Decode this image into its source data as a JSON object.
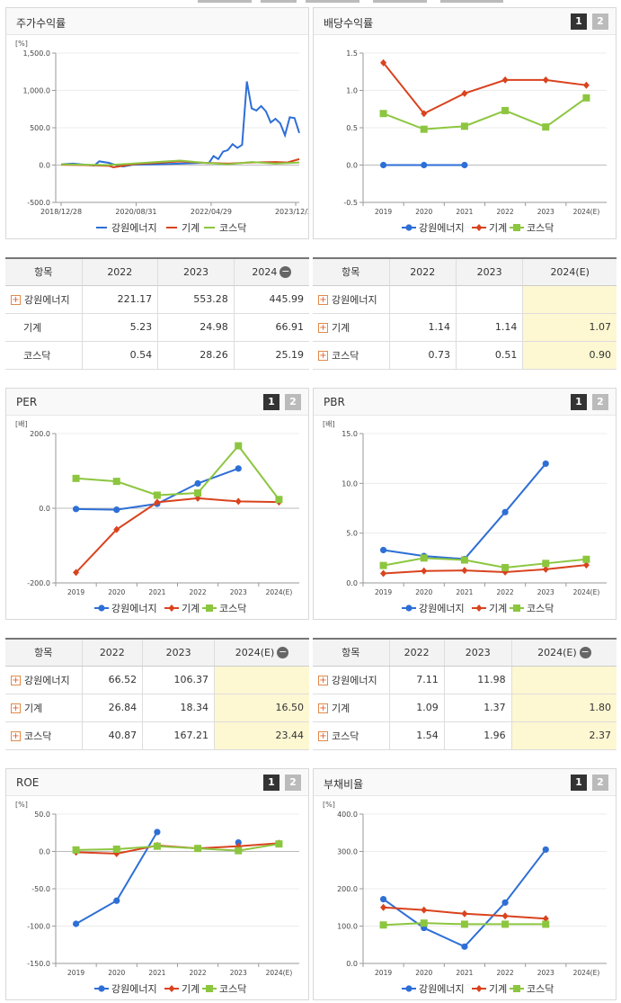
{
  "panels": [
    {
      "key": "stock",
      "title": "주가수익률",
      "buttons": false,
      "unit": "[%]",
      "chart_data": {
        "type": "line",
        "ylim": [
          -500,
          1500
        ],
        "yticks": [
          "1,500.0",
          "1,000.0",
          "500.0",
          "0.0",
          "-500.0"
        ],
        "ytick_vals": [
          1500,
          1000,
          500,
          0,
          -500
        ],
        "xticks": [
          "2018/12/28",
          "2020/08/31",
          "2022/04/29",
          "2023/12/28"
        ],
        "series": [
          {
            "name": "강원에너지",
            "color": "#2e6fd6",
            "marker": "none",
            "x": [
              0,
              0.05,
              0.1,
              0.14,
              0.16,
              0.2,
              0.22,
              0.26,
              0.3,
              0.4,
              0.5,
              0.6,
              0.62,
              0.64,
              0.66,
              0.68,
              0.7,
              0.72,
              0.74,
              0.76,
              0.78,
              0.8,
              0.82,
              0.84,
              0.86,
              0.88,
              0.9,
              0.92,
              0.94,
              0.96,
              0.98,
              1.0
            ],
            "y": [
              10,
              20,
              5,
              -5,
              50,
              30,
              10,
              -20,
              5,
              10,
              20,
              30,
              25,
              120,
              80,
              180,
              200,
              280,
              230,
              270,
              1120,
              760,
              730,
              790,
              720,
              570,
              620,
              560,
              400,
              640,
              630,
              430
            ]
          },
          {
            "name": "기계",
            "color": "#d9431e",
            "marker": "none",
            "x": [
              0,
              0.1,
              0.2,
              0.22,
              0.3,
              0.4,
              0.5,
              0.6,
              0.7,
              0.8,
              0.9,
              0.95,
              1.0
            ],
            "y": [
              5,
              0,
              -10,
              -30,
              10,
              30,
              50,
              30,
              20,
              35,
              40,
              35,
              80
            ]
          },
          {
            "name": "코스닥",
            "color": "#8cc63f",
            "marker": "none",
            "x": [
              0,
              0.1,
              0.2,
              0.3,
              0.4,
              0.5,
              0.6,
              0.7,
              0.8,
              0.9,
              1.0
            ],
            "y": [
              10,
              5,
              0,
              20,
              40,
              60,
              30,
              10,
              40,
              20,
              35
            ]
          }
        ]
      }
    },
    {
      "key": "div",
      "title": "배당수익률",
      "buttons": true,
      "unit": "",
      "chart_data": {
        "type": "line",
        "ylim": [
          -0.5,
          1.5
        ],
        "yticks": [
          "1.5",
          "1.0",
          "0.5",
          "0.0",
          "-0.5"
        ],
        "ytick_vals": [
          1.5,
          1.0,
          0.5,
          0,
          -0.5
        ],
        "xticks": [
          "2019",
          "2020",
          "2021",
          "2022",
          "2023",
          "2024(E)"
        ],
        "series": [
          {
            "name": "강원에너지",
            "color": "#2e6fd6",
            "marker": "circle",
            "values": [
              0,
              0,
              0,
              null,
              null,
              null
            ]
          },
          {
            "name": "기계",
            "color": "#d9431e",
            "marker": "diamond",
            "values": [
              1.37,
              0.69,
              0.96,
              1.14,
              1.14,
              1.07
            ]
          },
          {
            "name": "코스닥",
            "color": "#8cc63f",
            "marker": "square",
            "values": [
              0.69,
              0.48,
              0.52,
              0.73,
              0.51,
              0.9
            ]
          }
        ]
      }
    },
    {
      "key": "per",
      "title": "PER",
      "buttons": true,
      "unit": "[배]",
      "chart_data": {
        "type": "line",
        "ylim": [
          -200,
          200
        ],
        "yticks": [
          "200.0",
          "0.0",
          "-200.0"
        ],
        "ytick_vals": [
          200,
          0,
          -200
        ],
        "xticks": [
          "2019",
          "2020",
          "2021",
          "2022",
          "2023",
          "2024(E)"
        ],
        "series": [
          {
            "name": "강원에너지",
            "color": "#2e6fd6",
            "marker": "circle",
            "values": [
              -2,
              -4,
              12,
              66.52,
              106.37,
              null
            ]
          },
          {
            "name": "기계",
            "color": "#d9431e",
            "marker": "diamond",
            "values": [
              -172,
              -57,
              16,
              26.84,
              18.34,
              16.5
            ]
          },
          {
            "name": "코스닥",
            "color": "#8cc63f",
            "marker": "square",
            "values": [
              80,
              72,
              35,
              40.87,
              167.21,
              23.44
            ]
          }
        ]
      }
    },
    {
      "key": "pbr",
      "title": "PBR",
      "buttons": true,
      "unit": "[배]",
      "chart_data": {
        "type": "line",
        "ylim": [
          0,
          15
        ],
        "yticks": [
          "15.0",
          "10.0",
          "5.0",
          "0.0"
        ],
        "ytick_vals": [
          15,
          10,
          5,
          0
        ],
        "xticks": [
          "2019",
          "2020",
          "2021",
          "2022",
          "2023",
          "2024(E)"
        ],
        "series": [
          {
            "name": "강원에너지",
            "color": "#2e6fd6",
            "marker": "circle",
            "values": [
              3.3,
              2.7,
              2.4,
              7.11,
              11.98,
              null
            ]
          },
          {
            "name": "기계",
            "color": "#d9431e",
            "marker": "diamond",
            "values": [
              0.95,
              1.2,
              1.25,
              1.09,
              1.37,
              1.8
            ]
          },
          {
            "name": "코스닥",
            "color": "#8cc63f",
            "marker": "square",
            "values": [
              1.75,
              2.5,
              2.3,
              1.54,
              1.96,
              2.37
            ]
          }
        ]
      }
    },
    {
      "key": "roe",
      "title": "ROE",
      "buttons": true,
      "unit": "[%]",
      "chart_data": {
        "type": "line",
        "ylim": [
          -150,
          50
        ],
        "yticks": [
          "50.0",
          "0.0",
          "-50.0",
          "-100.0",
          "-150.0"
        ],
        "ytick_vals": [
          50,
          0,
          -50,
          -100,
          -150
        ],
        "xticks": [
          "2019",
          "2020",
          "2021",
          "2022",
          "2023",
          "2024(E)"
        ],
        "series": [
          {
            "name": "강원에너지",
            "color": "#2e6fd6",
            "marker": "circle",
            "values": [
              -97,
              -66,
              26,
              null,
              12,
              null
            ]
          },
          {
            "name": "기계",
            "color": "#d9431e",
            "marker": "diamond",
            "values": [
              -1,
              -3,
              8,
              4,
              7,
              11
            ]
          },
          {
            "name": "코스닥",
            "color": "#8cc63f",
            "marker": "square",
            "values": [
              2,
              3,
              7,
              4,
              1,
              10
            ]
          }
        ]
      }
    },
    {
      "key": "debt",
      "title": "부채비율",
      "buttons": true,
      "unit": "[%]",
      "chart_data": {
        "type": "line",
        "ylim": [
          0,
          400
        ],
        "yticks": [
          "400.0",
          "300.0",
          "200.0",
          "100.0",
          "0.0"
        ],
        "ytick_vals": [
          400,
          300,
          200,
          100,
          0
        ],
        "xticks": [
          "2019",
          "2020",
          "2021",
          "2022",
          "2023",
          "2024(E)"
        ],
        "series": [
          {
            "name": "강원에너지",
            "color": "#2e6fd6",
            "marker": "circle",
            "values": [
              172,
              95,
              45,
              163,
              305,
              null
            ]
          },
          {
            "name": "기계",
            "color": "#d9431e",
            "marker": "diamond",
            "values": [
              150,
              143,
              133,
              127,
              120,
              null
            ]
          },
          {
            "name": "코스닥",
            "color": "#8cc63f",
            "marker": "square",
            "values": [
              103,
              108,
              105,
              105,
              105,
              null
            ]
          }
        ]
      }
    }
  ],
  "legend": [
    "강원에너지",
    "기계",
    "코스닥"
  ],
  "tables": [
    {
      "key": "stock",
      "headers": [
        "항목",
        "2022",
        "2023",
        "2024"
      ],
      "minus": true,
      "hl": false,
      "rows": [
        [
          "강원에너지",
          "221.17",
          "553.28",
          "445.99",
          true
        ],
        [
          "기계",
          "5.23",
          "24.98",
          "66.91",
          false
        ],
        [
          "코스닥",
          "0.54",
          "28.26",
          "25.19",
          false
        ]
      ]
    },
    {
      "key": "div",
      "headers": [
        "항목",
        "2022",
        "2023",
        "2024(E)"
      ],
      "minus": false,
      "hl": true,
      "rows": [
        [
          "강원에너지",
          "",
          "",
          "",
          true
        ],
        [
          "기계",
          "1.14",
          "1.14",
          "1.07",
          true
        ],
        [
          "코스닥",
          "0.73",
          "0.51",
          "0.90",
          true
        ]
      ]
    },
    {
      "key": "per",
      "headers": [
        "항목",
        "2022",
        "2023",
        "2024(E)"
      ],
      "minus": true,
      "hl": true,
      "rows": [
        [
          "강원에너지",
          "66.52",
          "106.37",
          "",
          true
        ],
        [
          "기계",
          "26.84",
          "18.34",
          "16.50",
          true
        ],
        [
          "코스닥",
          "40.87",
          "167.21",
          "23.44",
          true
        ]
      ]
    },
    {
      "key": "pbr",
      "headers": [
        "항목",
        "2022",
        "2023",
        "2024(E)"
      ],
      "minus": true,
      "hl": true,
      "rows": [
        [
          "강원에너지",
          "7.11",
          "11.98",
          "",
          true
        ],
        [
          "기계",
          "1.09",
          "1.37",
          "1.80",
          true
        ],
        [
          "코스닥",
          "1.54",
          "1.96",
          "2.37",
          true
        ]
      ]
    }
  ],
  "btn1": "1",
  "btn2": "2"
}
